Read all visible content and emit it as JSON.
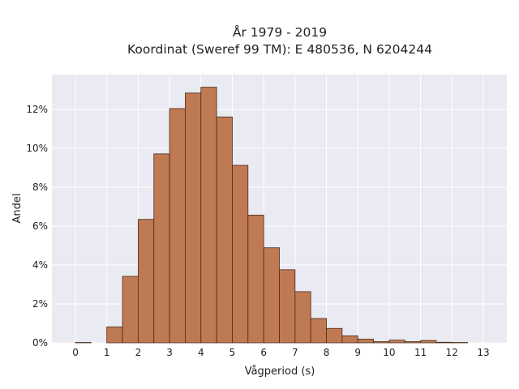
{
  "chart_data": {
    "type": "bar",
    "title_line1": "År 1979 - 2019",
    "title_line2": "Koordinat (Sweref 99 TM): E 480536, N 6204244",
    "xlabel": "Vågperiod (s)",
    "ylabel": "Andel",
    "bin_width": 0.5,
    "bins": [
      {
        "x0": 0.0,
        "value": 0.02
      },
      {
        "x0": 0.5,
        "value": 0.0
      },
      {
        "x0": 1.0,
        "value": 0.82
      },
      {
        "x0": 1.5,
        "value": 3.42
      },
      {
        "x0": 2.0,
        "value": 6.35
      },
      {
        "x0": 2.5,
        "value": 9.72
      },
      {
        "x0": 3.0,
        "value": 12.05
      },
      {
        "x0": 3.5,
        "value": 12.85
      },
      {
        "x0": 4.0,
        "value": 13.15
      },
      {
        "x0": 4.5,
        "value": 11.62
      },
      {
        "x0": 5.0,
        "value": 9.13
      },
      {
        "x0": 5.5,
        "value": 6.57
      },
      {
        "x0": 6.0,
        "value": 4.89
      },
      {
        "x0": 6.5,
        "value": 3.76
      },
      {
        "x0": 7.0,
        "value": 2.63
      },
      {
        "x0": 7.5,
        "value": 1.25
      },
      {
        "x0": 8.0,
        "value": 0.74
      },
      {
        "x0": 8.5,
        "value": 0.36
      },
      {
        "x0": 9.0,
        "value": 0.19
      },
      {
        "x0": 9.5,
        "value": 0.06
      },
      {
        "x0": 10.0,
        "value": 0.14
      },
      {
        "x0": 10.5,
        "value": 0.06
      },
      {
        "x0": 11.0,
        "value": 0.12
      },
      {
        "x0": 11.5,
        "value": 0.03
      },
      {
        "x0": 12.0,
        "value": 0.02
      }
    ],
    "xlim": [
      -0.75,
      13.75
    ],
    "ylim": [
      0,
      13.8
    ],
    "x_ticks": [
      0,
      1,
      2,
      3,
      4,
      5,
      6,
      7,
      8,
      9,
      10,
      11,
      12,
      13
    ],
    "x_tick_labels": [
      "0",
      "1",
      "2",
      "3",
      "4",
      "5",
      "6",
      "7",
      "8",
      "9",
      "10",
      "11",
      "12",
      "13"
    ],
    "y_ticks": [
      0,
      2,
      4,
      6,
      8,
      10,
      12
    ],
    "y_tick_labels": [
      "0%",
      "2%",
      "4%",
      "6%",
      "8%",
      "10%",
      "12%"
    ],
    "grid": true,
    "colors": {
      "bar_fill": "#c07a53",
      "bar_stroke": "#4a2a1a",
      "plot_bg": "#eaeaf2",
      "grid": "#ffffff"
    }
  }
}
